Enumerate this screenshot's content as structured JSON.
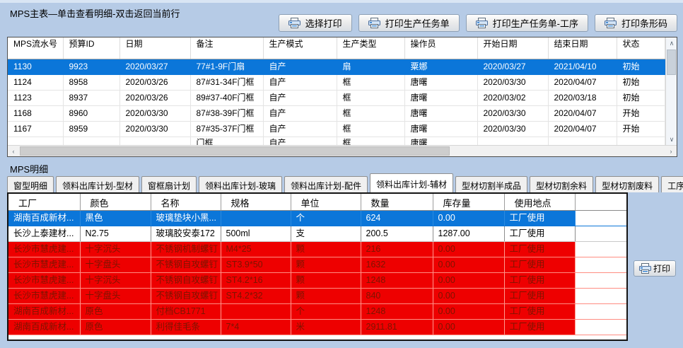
{
  "colors": {
    "selection": "#0b76d9",
    "shortage_row": "#ee0000",
    "shortage_text": "#7d1400",
    "window_bg": "#b6cbe6"
  },
  "main": {
    "title": "MPS主表—单击查看明细-双击返回当前行",
    "buttons": [
      {
        "name": "print-select-button",
        "icon": "printer-icon",
        "label": "选择打印"
      },
      {
        "name": "print-production-order-button",
        "icon": "printer-icon",
        "label": "打印生产任务单"
      },
      {
        "name": "print-production-order-process-button",
        "icon": "printer-icon",
        "label": "打印生产任务单-工序"
      },
      {
        "name": "print-barcode-button",
        "icon": "printer-icon",
        "label": "打印条形码"
      }
    ],
    "table": {
      "columns": [
        "MPS流水号",
        "预算ID",
        "日期",
        "备注",
        "生产模式",
        "生产类型",
        "操作员",
        "开始日期",
        "结束日期",
        "状态"
      ],
      "rows": [
        {
          "state": "selected",
          "cells": [
            "1130",
            "9923",
            "2020/03/27",
            "77#1-9F门扇",
            "自产",
            "扇",
            "粟娜",
            "2020/03/27",
            "2021/04/10",
            "初始"
          ]
        },
        {
          "state": "normal",
          "cells": [
            "1124",
            "8958",
            "2020/03/26",
            "87#31-34F门框",
            "自产",
            "框",
            "唐曙",
            "2020/03/30",
            "2020/04/07",
            "初始"
          ]
        },
        {
          "state": "normal",
          "cells": [
            "1123",
            "8937",
            "2020/03/26",
            "89#37-40F门框",
            "自产",
            "框",
            "唐曙",
            "2020/03/02",
            "2020/03/18",
            "初始"
          ]
        },
        {
          "state": "normal",
          "cells": [
            "1168",
            "8960",
            "2020/03/30",
            "87#38-39F门框",
            "自产",
            "框",
            "唐曙",
            "2020/03/30",
            "2020/04/07",
            "开始"
          ]
        },
        {
          "state": "normal",
          "cells": [
            "1167",
            "8959",
            "2020/03/30",
            "87#35-37F门框",
            "自产",
            "框",
            "唐曙",
            "2020/03/30",
            "2020/04/07",
            "开始"
          ]
        },
        {
          "state": "partial",
          "cells": [
            "",
            "",
            "",
            "门框",
            "自产",
            "框",
            "唐曙",
            "",
            "",
            ""
          ]
        }
      ]
    }
  },
  "detail": {
    "title": "MPS明细",
    "tabs": [
      {
        "name": "tab-window-detail",
        "label": "窗型明细",
        "active": false
      },
      {
        "name": "tab-material-plan-profile",
        "label": "领料出库计划-型材",
        "active": false
      },
      {
        "name": "tab-frame-sash-plan",
        "label": "窗框扇计划",
        "active": false
      },
      {
        "name": "tab-material-plan-glass",
        "label": "领料出库计划-玻璃",
        "active": false
      },
      {
        "name": "tab-material-plan-parts",
        "label": "领料出库计划-配件",
        "active": false
      },
      {
        "name": "tab-material-plan-auxiliary",
        "label": "领料出库计划-辅材",
        "active": true
      },
      {
        "name": "tab-profile-cut-semi",
        "label": "型材切割半成品",
        "active": false
      },
      {
        "name": "tab-profile-cut-remnant",
        "label": "型材切割余料",
        "active": false
      },
      {
        "name": "tab-profile-cut-waste",
        "label": "型材切割废料",
        "active": false
      },
      {
        "name": "tab-process",
        "label": "工序",
        "active": false
      }
    ],
    "table": {
      "columns": [
        "工厂",
        "颜色",
        "名称",
        "规格",
        "单位",
        "数量",
        "库存量",
        "使用地点"
      ],
      "rows": [
        {
          "state": "selected",
          "cells": [
            "湖南百成新材...",
            "黑色",
            "玻璃垫块小黑...",
            "",
            "个",
            "624",
            "0.00",
            "工厂使用"
          ]
        },
        {
          "state": "normal",
          "cells": [
            "长沙上泰建材...",
            "N2.75",
            "玻璃胶安泰172",
            "500ml",
            "支",
            "200.5",
            "1287.00",
            "工厂使用"
          ]
        },
        {
          "state": "shortage",
          "cells": [
            "长沙市慧虎建...",
            "十字沉头",
            "不锈钢机制螺钉",
            "M4*25",
            "颗",
            "216",
            "0.00",
            "工厂使用"
          ]
        },
        {
          "state": "shortage",
          "cells": [
            "长沙市慧虎建...",
            "十字盘头",
            "不锈钢自攻螺钉",
            "ST3.9*50",
            "颗",
            "1632",
            "0.00",
            "工厂使用"
          ]
        },
        {
          "state": "shortage",
          "cells": [
            "长沙市慧虎建...",
            "十字沉头",
            "不锈钢自攻螺钉",
            "ST4.2*16",
            "颗",
            "1248",
            "0.00",
            "工厂使用"
          ]
        },
        {
          "state": "shortage",
          "cells": [
            "长沙市慧虎建...",
            "十字盘头",
            "不锈钢自攻螺钉",
            "ST4.2*32",
            "颗",
            "840",
            "0.00",
            "工厂使用"
          ]
        },
        {
          "state": "shortage",
          "cells": [
            "湖南百成新材...",
            "原色",
            "付档CB1771",
            "",
            "个",
            "1248",
            "0.00",
            "工厂使用"
          ]
        },
        {
          "state": "shortage",
          "cells": [
            "湖南百成新材...",
            "原色",
            "利得佳毛条",
            "7*4",
            "米",
            "2911.81",
            "0.00",
            "工厂使用"
          ]
        }
      ]
    },
    "print_button": {
      "name": "detail-print-button",
      "icon": "printer-icon",
      "label": "打印"
    }
  }
}
